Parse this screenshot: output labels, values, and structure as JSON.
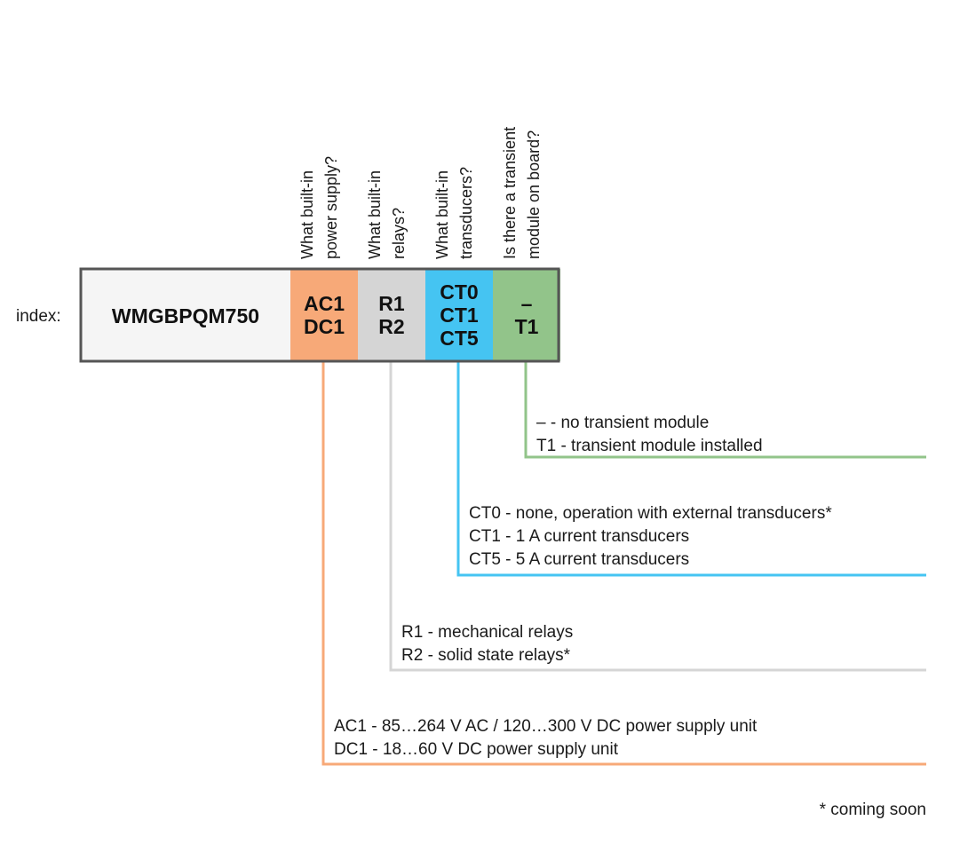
{
  "index_label": "index:",
  "model": "WMGBPQM750",
  "colors": {
    "power": "#F7A978",
    "relays": "#D5D5D5",
    "transducers": "#45C4F2",
    "transient": "#92C48A",
    "model_bg": "#F5F5F5",
    "border": "#555555"
  },
  "segments": [
    {
      "key": "power",
      "question": [
        "What built-in",
        "power supply?"
      ],
      "codes": [
        "AC1",
        "DC1"
      ],
      "descriptions": [
        "AC1 - 85…264 V AC / 120…300 V DC power supply unit",
        "DC1 - 18…60 V DC power supply unit"
      ]
    },
    {
      "key": "relays",
      "question": [
        "What built-in",
        "relays?"
      ],
      "codes": [
        "R1",
        "R2"
      ],
      "descriptions": [
        "R1 - mechanical relays",
        "R2 - solid state relays*"
      ]
    },
    {
      "key": "transducers",
      "question": [
        "What built-in",
        "transducers?"
      ],
      "codes": [
        "CT0",
        "CT1",
        "CT5"
      ],
      "descriptions": [
        "CT0 - none, operation with external transducers*",
        "CT1 - 1 A current transducers",
        "CT5 - 5 A current transducers"
      ]
    },
    {
      "key": "transient",
      "question": [
        "Is there a transient",
        "module on board?"
      ],
      "codes": [
        "–",
        "T1"
      ],
      "descriptions": [
        "– - no transient module",
        "T1 - transient module installed"
      ]
    }
  ],
  "footnote": "* coming soon"
}
